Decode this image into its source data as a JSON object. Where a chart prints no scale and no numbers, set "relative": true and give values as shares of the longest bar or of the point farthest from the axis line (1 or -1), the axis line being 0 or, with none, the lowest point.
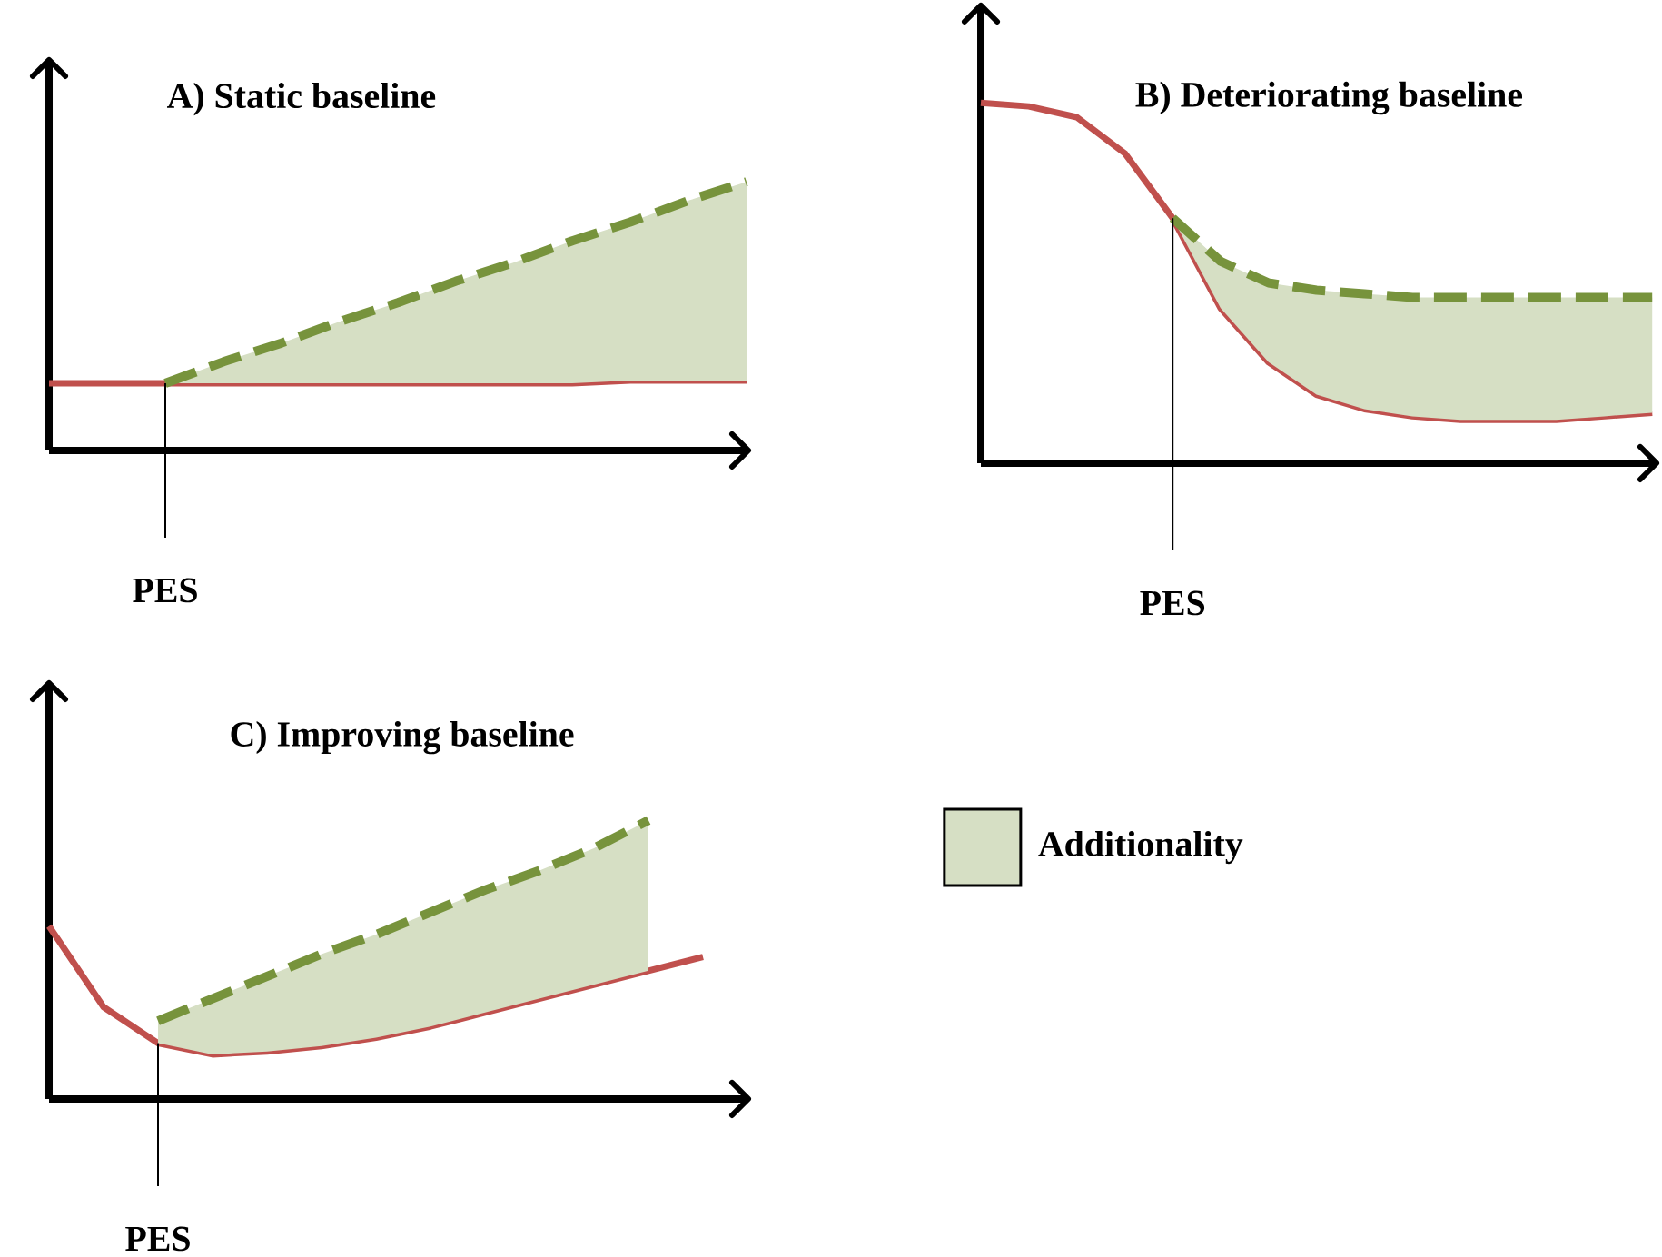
{
  "chart_data": [
    {
      "type": "line",
      "relative": true,
      "title": "A) Static baseline",
      "categories": [
        null,
        null,
        null,
        null,
        null,
        null,
        null,
        null,
        null,
        null,
        null,
        null,
        null
      ],
      "series": [
        {
          "color": "#c0504d",
          "values": [
            0.25,
            0.25,
            0.25,
            0.25,
            0.25,
            0.25,
            0.25,
            0.25,
            0.25,
            0.25,
            0.26,
            0.26,
            0.26
          ]
        },
        {
          "color": "#77933c",
          "line_style": "dashed",
          "values": [
            null,
            null,
            0.25,
            0.33,
            0.4,
            0.48,
            0.55,
            0.63,
            0.7,
            0.78,
            0.85,
            0.93,
            1.0
          ],
          "lower": [
            null,
            null,
            0.25,
            0.25,
            0.25,
            0.25,
            0.25,
            0.25,
            0.25,
            0.25,
            0.26,
            0.26,
            0.26
          ],
          "upper": [
            null,
            null,
            0.25,
            0.33,
            0.4,
            0.48,
            0.55,
            0.63,
            0.7,
            0.78,
            0.85,
            0.93,
            1.0
          ]
        }
      ],
      "annotations": [
        "PES"
      ]
    },
    {
      "type": "line",
      "relative": true,
      "title": "B) Deteriorating baseline",
      "categories": [
        null,
        null,
        null,
        null,
        null,
        null,
        null,
        null,
        null,
        null,
        null,
        null,
        null,
        null,
        null
      ],
      "series": [
        {
          "color": "#c0504d",
          "values": [
            1.0,
            0.99,
            0.96,
            0.86,
            0.68,
            0.43,
            0.28,
            0.19,
            0.15,
            0.13,
            0.12,
            0.12,
            0.12,
            0.13,
            0.14
          ]
        },
        {
          "color": "#77933c",
          "line_style": "dashed",
          "values": [
            null,
            null,
            null,
            null,
            0.68,
            0.56,
            0.5,
            0.48,
            0.47,
            0.46,
            0.46,
            0.46,
            0.46,
            0.46,
            0.46
          ],
          "lower": [
            null,
            null,
            null,
            null,
            0.68,
            0.43,
            0.28,
            0.19,
            0.15,
            0.13,
            0.12,
            0.12,
            0.12,
            0.13,
            0.14
          ],
          "upper": [
            null,
            null,
            null,
            null,
            0.68,
            0.56,
            0.5,
            0.48,
            0.47,
            0.46,
            0.46,
            0.46,
            0.46,
            0.46,
            0.46
          ]
        }
      ],
      "annotations": [
        "PES"
      ]
    },
    {
      "type": "line",
      "relative": true,
      "title": "C) Improving baseline",
      "categories": [
        null,
        null,
        null,
        null,
        null,
        null,
        null,
        null,
        null,
        null,
        null,
        null,
        null
      ],
      "legend": "right",
      "series": [
        {
          "color": "#c0504d",
          "values": [
            0.62,
            0.33,
            0.2,
            0.16,
            0.17,
            0.19,
            0.22,
            0.26,
            0.31,
            0.36,
            0.41,
            0.46,
            0.51
          ]
        },
        {
          "name": "Additionality",
          "color": "#77933c",
          "line_style": "dashed",
          "values": [
            null,
            null,
            0.28,
            0.36,
            0.44,
            0.52,
            0.59,
            0.67,
            0.75,
            0.82,
            0.9,
            1.0,
            null
          ],
          "lower": [
            null,
            null,
            0.2,
            0.16,
            0.17,
            0.19,
            0.22,
            0.26,
            0.31,
            0.36,
            0.41,
            0.46,
            null
          ],
          "upper": [
            null,
            null,
            0.28,
            0.36,
            0.44,
            0.52,
            0.59,
            0.67,
            0.75,
            0.82,
            0.9,
            1.0,
            null
          ]
        }
      ],
      "annotations": [
        "PES"
      ]
    }
  ]
}
